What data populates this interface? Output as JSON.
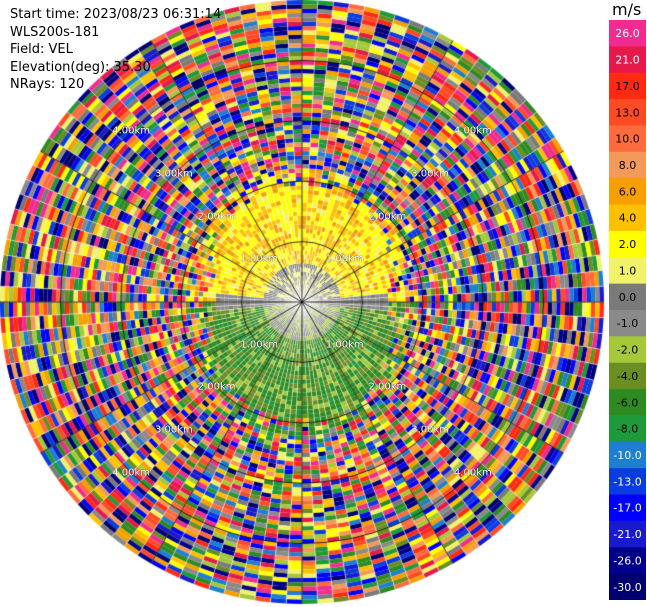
{
  "header": {
    "start_time": "Start time: 2023/08/23 06:31:14",
    "instrument": "WLS200s-181",
    "field": "Field: VEL",
    "elevation": "Elevation(deg): 35.30",
    "nrays": "NRays: 120"
  },
  "colorbar": {
    "unit": "m/s",
    "tick_labels": [
      "26.0",
      "21.0",
      "17.0",
      "13.0",
      "10.0",
      "8.0",
      "6.0",
      "4.0",
      "2.0",
      "1.0",
      "0.0",
      "-1.0",
      "-2.0",
      "-4.0",
      "-6.0",
      "-8.0",
      "-10.0",
      "-13.0",
      "-17.0",
      "-21.0",
      "-26.0",
      "-30.0"
    ],
    "colors": [
      "#f02c90",
      "#e6194b",
      "#ff2a12",
      "#ff4b24",
      "#ff6b3c",
      "#f49a58",
      "#f5a000",
      "#ffc000",
      "#ffff00",
      "#f2f26a",
      "#7a7a7a",
      "#8a8a8a",
      "#a5c93a",
      "#6b8e23",
      "#2e8b22",
      "#1f9a3a",
      "#1e7fd0",
      "#0a3ce0",
      "#0000ff",
      "#1a1acd",
      "#00008b",
      "#000070"
    ]
  },
  "chart_data": {
    "type": "heatmap",
    "projection": "polar PPI",
    "field": "VEL",
    "units": "m/s",
    "nrays": 120,
    "value_range": [
      -30.0,
      26.0
    ],
    "range_ring_labels": [
      "1.00km",
      "2.00km",
      "3.00km",
      "4.00km"
    ],
    "range_rings_km": [
      1,
      2,
      3,
      4
    ],
    "spokes_deg": [
      0,
      30,
      60,
      90,
      120,
      150,
      180,
      210,
      240,
      270,
      300,
      330
    ],
    "pattern": {
      "inner_north": "yellow / orange (+2 to +6 m/s)",
      "inner_south": "green (-2 to -6 m/s)",
      "center_band": "gray (~0 m/s)",
      "outer": "noisy full-range values"
    }
  }
}
